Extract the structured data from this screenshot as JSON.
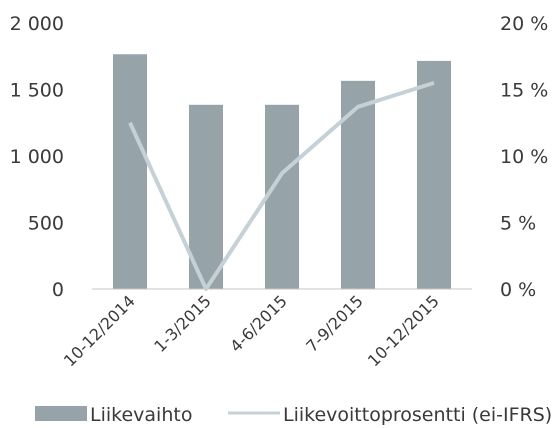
{
  "chart_data": {
    "type": "bar",
    "categories": [
      "10-12/2014",
      "1-3/2015",
      "4-6/2015",
      "7-9/2015",
      "10-12/2015"
    ],
    "series": [
      {
        "name": "Liikevaihto",
        "type": "bar",
        "axis": "left",
        "color": "#96a3a8",
        "values": [
          1765,
          1385,
          1385,
          1565,
          1715
        ]
      },
      {
        "name": "Liikevoittoprosentti (ei-IFRS)",
        "type": "line",
        "axis": "right",
        "color": "#c5d1d6",
        "values": [
          12.5,
          0.0,
          8.7,
          13.7,
          15.5
        ]
      }
    ],
    "y_left": {
      "lim": [
        0,
        2000
      ],
      "ticks": [
        0,
        500,
        1000,
        1500,
        2000
      ],
      "tick_labels": [
        "0",
        "500",
        "1 000",
        "1 500",
        "2 000"
      ]
    },
    "y_right": {
      "lim": [
        0,
        20
      ],
      "ticks": [
        0,
        5,
        10,
        15,
        20
      ],
      "tick_labels": [
        "0 %",
        "5 %",
        "10 %",
        "15 %",
        "20 %"
      ]
    },
    "grid": false,
    "legend": "bottom",
    "axis_color": "#c5c5c5"
  }
}
